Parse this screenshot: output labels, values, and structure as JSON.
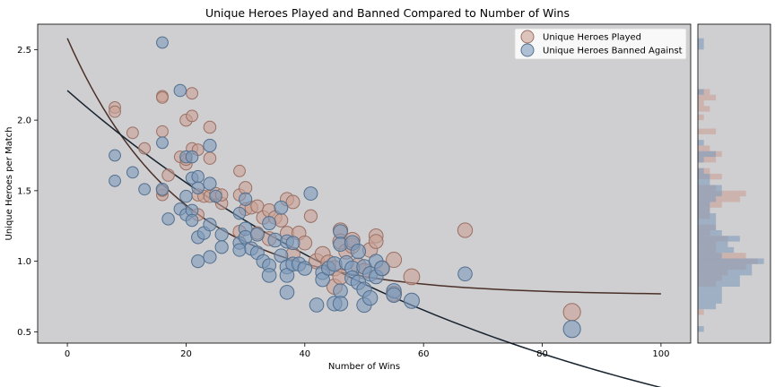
{
  "chart_data": {
    "type": "scatter",
    "title": "Unique Heroes Played and Banned Compared to Number of Wins",
    "xlabel": "Number of Wins",
    "ylabel": "Unique Heroes per Match",
    "xlim": [
      -5,
      105
    ],
    "ylim": [
      0.42,
      2.68
    ],
    "x_ticks": [
      0,
      20,
      40,
      60,
      80,
      100
    ],
    "y_ticks": [
      0.5,
      1.0,
      1.5,
      2.0,
      2.5
    ],
    "background": "#cfced0",
    "legend_position": "top-right",
    "series": [
      {
        "name": "Unique Heroes Played",
        "color": "#c9a196",
        "edge": "#9a7064",
        "trend_color": "#4a3028",
        "trend": {
          "a": 1.82,
          "k": 0.0525,
          "c": 0.76
        },
        "points": [
          [
            8,
            2.09,
            0.4
          ],
          [
            8,
            2.06,
            0.4
          ],
          [
            11,
            1.91,
            0.4
          ],
          [
            13,
            1.8,
            0.4
          ],
          [
            16,
            2.17,
            0.4
          ],
          [
            16,
            2.16,
            0.4
          ],
          [
            16,
            1.92,
            0.4
          ],
          [
            16,
            1.47,
            0.4
          ],
          [
            16,
            1.5,
            0.4
          ],
          [
            17,
            1.61,
            0.5
          ],
          [
            19,
            1.74,
            0.4
          ],
          [
            20,
            2.0,
            0.5
          ],
          [
            20,
            1.69,
            0.5
          ],
          [
            20,
            1.72,
            0.4
          ],
          [
            21,
            2.19,
            0.4
          ],
          [
            21,
            2.03,
            0.4
          ],
          [
            21,
            1.8,
            0.4
          ],
          [
            22,
            1.33,
            0.5
          ],
          [
            22,
            1.79,
            0.4
          ],
          [
            22,
            1.47,
            0.5
          ],
          [
            23,
            1.46,
            0.5
          ],
          [
            24,
            1.95,
            0.5
          ],
          [
            24,
            1.73,
            0.5
          ],
          [
            24,
            1.46,
            0.5
          ],
          [
            25,
            1.48,
            0.5
          ],
          [
            26,
            1.41,
            0.5
          ],
          [
            26,
            1.47,
            0.5
          ],
          [
            29,
            1.64,
            0.4
          ],
          [
            29,
            1.47,
            0.5
          ],
          [
            29,
            1.21,
            0.6
          ],
          [
            30,
            1.52,
            0.6
          ],
          [
            30,
            1.37,
            0.6
          ],
          [
            31,
            1.38,
            0.6
          ],
          [
            32,
            1.39,
            0.6
          ],
          [
            32,
            1.2,
            0.6
          ],
          [
            33,
            1.31,
            0.7
          ],
          [
            34,
            1.36,
            0.7
          ],
          [
            34,
            1.16,
            0.8
          ],
          [
            35,
            1.31,
            0.7
          ],
          [
            36,
            1.29,
            0.7
          ],
          [
            37,
            1.44,
            0.7
          ],
          [
            37,
            1.2,
            0.7
          ],
          [
            38,
            1.42,
            0.7
          ],
          [
            38,
            1.05,
            0.8
          ],
          [
            39,
            1.2,
            0.8
          ],
          [
            40,
            1.13,
            0.8
          ],
          [
            41,
            1.32,
            0.6
          ],
          [
            42,
            1.0,
            1.0
          ],
          [
            43,
            1.05,
            1.0
          ],
          [
            44,
            0.99,
            1.0
          ],
          [
            45,
            0.95,
            1.0
          ],
          [
            45,
            0.82,
            1.0
          ],
          [
            46,
            1.22,
            0.9
          ],
          [
            46,
            1.14,
            1.0
          ],
          [
            46,
            0.89,
            1.0
          ],
          [
            47,
            1.07,
            1.0
          ],
          [
            48,
            1.11,
            1.0
          ],
          [
            48,
            1.15,
            1.0
          ],
          [
            49,
            0.97,
            1.0
          ],
          [
            50,
            0.93,
            1.0
          ],
          [
            51,
            1.08,
            0.9
          ],
          [
            52,
            1.18,
            0.8
          ],
          [
            52,
            1.14,
            0.8
          ],
          [
            53,
            0.95,
            1.0
          ],
          [
            55,
            1.01,
            1.0
          ],
          [
            55,
            0.77,
            1.0
          ],
          [
            58,
            0.89,
            1.1
          ],
          [
            67,
            1.22,
            0.9
          ],
          [
            85,
            0.64,
            1.3
          ]
        ]
      },
      {
        "name": "Unique Heroes Banned Against",
        "color": "#7f9bbd",
        "edge": "#52708f",
        "trend_color": "#172430",
        "trend": {
          "a": 2.95,
          "k": 0.0125,
          "c": -0.74
        },
        "points": [
          [
            8,
            1.75,
            0.4
          ],
          [
            8,
            1.57,
            0.4
          ],
          [
            11,
            1.63,
            0.4
          ],
          [
            13,
            1.51,
            0.4
          ],
          [
            16,
            2.55,
            0.4
          ],
          [
            16,
            1.84,
            0.4
          ],
          [
            16,
            1.51,
            0.5
          ],
          [
            17,
            1.3,
            0.5
          ],
          [
            19,
            2.21,
            0.5
          ],
          [
            19,
            1.37,
            0.5
          ],
          [
            20,
            1.74,
            0.5
          ],
          [
            20,
            1.46,
            0.5
          ],
          [
            20,
            1.33,
            0.5
          ],
          [
            21,
            1.74,
            0.5
          ],
          [
            21,
            1.59,
            0.5
          ],
          [
            21,
            1.36,
            0.5
          ],
          [
            21,
            1.29,
            0.5
          ],
          [
            22,
            1.6,
            0.5
          ],
          [
            22,
            1.52,
            0.5
          ],
          [
            22,
            1.17,
            0.6
          ],
          [
            22,
            1.0,
            0.6
          ],
          [
            23,
            1.2,
            0.6
          ],
          [
            24,
            1.82,
            0.6
          ],
          [
            24,
            1.55,
            0.6
          ],
          [
            24,
            1.26,
            0.6
          ],
          [
            24,
            1.03,
            0.6
          ],
          [
            25,
            1.46,
            0.5
          ],
          [
            26,
            1.19,
            0.6
          ],
          [
            26,
            1.1,
            0.6
          ],
          [
            29,
            1.34,
            0.5
          ],
          [
            29,
            1.13,
            0.6
          ],
          [
            29,
            1.08,
            0.6
          ],
          [
            30,
            1.44,
            0.6
          ],
          [
            30,
            1.23,
            0.7
          ],
          [
            30,
            1.17,
            0.7
          ],
          [
            31,
            1.09,
            0.7
          ],
          [
            32,
            1.19,
            0.7
          ],
          [
            32,
            1.06,
            0.7
          ],
          [
            33,
            1.0,
            0.7
          ],
          [
            34,
            1.27,
            0.7
          ],
          [
            34,
            0.97,
            0.7
          ],
          [
            34,
            0.9,
            0.8
          ],
          [
            35,
            1.15,
            0.8
          ],
          [
            36,
            1.38,
            0.7
          ],
          [
            36,
            1.04,
            0.7
          ],
          [
            37,
            1.14,
            0.7
          ],
          [
            37,
            0.96,
            0.8
          ],
          [
            37,
            0.9,
            0.8
          ],
          [
            37,
            0.78,
            0.8
          ],
          [
            38,
            1.13,
            0.7
          ],
          [
            38,
            0.98,
            0.8
          ],
          [
            39,
            0.98,
            0.8
          ],
          [
            40,
            0.95,
            0.8
          ],
          [
            41,
            1.48,
            0.7
          ],
          [
            42,
            0.69,
            0.8
          ],
          [
            43,
            0.92,
            0.8
          ],
          [
            43,
            0.87,
            0.8
          ],
          [
            44,
            0.95,
            0.8
          ],
          [
            45,
            0.98,
            0.9
          ],
          [
            45,
            0.7,
            0.9
          ],
          [
            46,
            1.21,
            0.8
          ],
          [
            46,
            1.12,
            0.8
          ],
          [
            46,
            0.79,
            0.8
          ],
          [
            46,
            0.7,
            0.9
          ],
          [
            47,
            0.99,
            0.8
          ],
          [
            48,
            1.13,
            0.9
          ],
          [
            48,
            0.95,
            0.9
          ],
          [
            48,
            0.88,
            0.9
          ],
          [
            49,
            1.07,
            0.9
          ],
          [
            49,
            0.85,
            0.9
          ],
          [
            50,
            0.96,
            0.9
          ],
          [
            50,
            0.8,
            0.9
          ],
          [
            50,
            0.69,
            0.9
          ],
          [
            51,
            0.74,
            0.9
          ],
          [
            51,
            0.91,
            0.9
          ],
          [
            52,
            1.0,
            0.8
          ],
          [
            52,
            0.89,
            0.8
          ],
          [
            53,
            0.95,
            0.9
          ],
          [
            55,
            0.79,
            0.9
          ],
          [
            55,
            0.76,
            0.9
          ],
          [
            58,
            0.72,
            1.0
          ],
          [
            67,
            0.91,
            0.8
          ],
          [
            85,
            0.52,
            1.3
          ]
        ]
      }
    ],
    "histogram": {
      "bin_width": 0.04,
      "series": [
        {
          "name": "Unique Heroes Played",
          "bins": [
            [
              0.62,
              1
            ],
            [
              0.82,
              3
            ],
            [
              0.86,
              4
            ],
            [
              0.9,
              5
            ],
            [
              0.94,
              8
            ],
            [
              0.98,
              10
            ],
            [
              1.02,
              8
            ],
            [
              1.06,
              3
            ],
            [
              1.1,
              3
            ],
            [
              1.14,
              5
            ],
            [
              1.18,
              2
            ],
            [
              1.22,
              3
            ],
            [
              1.3,
              2
            ],
            [
              1.34,
              2
            ],
            [
              1.38,
              4
            ],
            [
              1.42,
              7
            ],
            [
              1.46,
              8
            ],
            [
              1.5,
              3
            ],
            [
              1.58,
              4
            ],
            [
              1.62,
              2
            ],
            [
              1.7,
              3
            ],
            [
              1.74,
              4
            ],
            [
              1.78,
              2
            ],
            [
              1.9,
              3
            ],
            [
              2.0,
              1
            ],
            [
              2.06,
              2
            ],
            [
              2.1,
              1
            ],
            [
              2.14,
              3
            ],
            [
              2.18,
              2
            ]
          ]
        },
        {
          "name": "Unique Heroes Banned Against",
          "bins": [
            [
              0.5,
              1
            ],
            [
              0.66,
              3
            ],
            [
              0.7,
              4
            ],
            [
              0.74,
              4
            ],
            [
              0.78,
              4
            ],
            [
              0.82,
              7
            ],
            [
              0.86,
              7
            ],
            [
              0.9,
              9
            ],
            [
              0.94,
              9
            ],
            [
              0.98,
              11
            ],
            [
              1.02,
              4
            ],
            [
              1.06,
              6
            ],
            [
              1.1,
              5
            ],
            [
              1.14,
              7
            ],
            [
              1.18,
              4
            ],
            [
              1.22,
              3
            ],
            [
              1.26,
              3
            ],
            [
              1.3,
              3
            ],
            [
              1.34,
              2
            ],
            [
              1.38,
              2
            ],
            [
              1.42,
              3
            ],
            [
              1.46,
              4
            ],
            [
              1.5,
              4
            ],
            [
              1.54,
              2
            ],
            [
              1.58,
              2
            ],
            [
              1.62,
              1
            ],
            [
              1.7,
              1
            ],
            [
              1.74,
              3
            ],
            [
              1.82,
              1
            ],
            [
              2.18,
              1
            ],
            [
              2.5,
              1
            ],
            [
              2.54,
              1
            ]
          ]
        }
      ]
    }
  }
}
